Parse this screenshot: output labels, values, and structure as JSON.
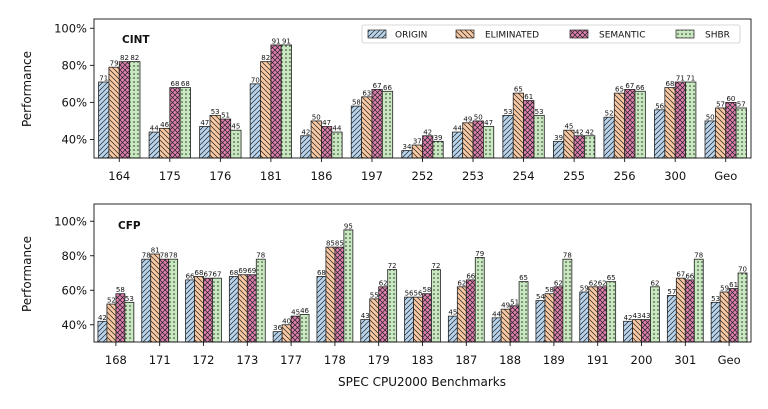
{
  "chart_data": [
    {
      "type": "bar",
      "panel_label": "CINT",
      "ylabel": "Performance",
      "xlabel": "",
      "ylim": [
        30,
        105
      ],
      "yticks": [
        40,
        60,
        80,
        100
      ],
      "ytick_labels": [
        "40%",
        "60%",
        "80%",
        "100%"
      ],
      "legend_position": "top-right",
      "categories": [
        "164",
        "175",
        "176",
        "181",
        "186",
        "197",
        "252",
        "253",
        "254",
        "255",
        "256",
        "300",
        "Geo"
      ],
      "series": [
        {
          "name": "ORIGIN",
          "color": "#b8d4ec",
          "hatch": "diag",
          "values": [
            71,
            44,
            47,
            70,
            42,
            58,
            34,
            44,
            53,
            39,
            52,
            56,
            50
          ]
        },
        {
          "name": "ELIMINATED",
          "color": "#f9c9a4",
          "hatch": "backdiag",
          "values": [
            79,
            46,
            53,
            82,
            50,
            63,
            37,
            49,
            65,
            45,
            65,
            68,
            57
          ]
        },
        {
          "name": "SEMANTIC",
          "color": "#e080b0",
          "hatch": "cross",
          "values": [
            82,
            68,
            51,
            91,
            47,
            67,
            42,
            50,
            61,
            42,
            67,
            71,
            60
          ]
        },
        {
          "name": "SHBR",
          "color": "#c8e8c0",
          "hatch": "dots",
          "values": [
            82,
            68,
            45,
            91,
            44,
            66,
            39,
            47,
            53,
            42,
            66,
            71,
            57
          ]
        }
      ]
    },
    {
      "type": "bar",
      "panel_label": "CFP",
      "ylabel": "Performance",
      "xlabel": "SPEC CPU2000 Benchmarks",
      "ylim": [
        30,
        110
      ],
      "yticks": [
        40,
        60,
        80,
        100
      ],
      "ytick_labels": [
        "40%",
        "60%",
        "80%",
        "100%"
      ],
      "categories": [
        "168",
        "171",
        "172",
        "173",
        "177",
        "178",
        "179",
        "183",
        "187",
        "188",
        "189",
        "191",
        "200",
        "301",
        "Geo"
      ],
      "series": [
        {
          "name": "ORIGIN",
          "color": "#b8d4ec",
          "hatch": "diag",
          "values": [
            42,
            78,
            66,
            68,
            36,
            68,
            43,
            56,
            45,
            44,
            54,
            59,
            42,
            57,
            53
          ]
        },
        {
          "name": "ELIMINATED",
          "color": "#f9c9a4",
          "hatch": "backdiag",
          "values": [
            52,
            81,
            68,
            69,
            40,
            85,
            55,
            56,
            62,
            49,
            58,
            62,
            43,
            67,
            59
          ]
        },
        {
          "name": "SEMANTIC",
          "color": "#e080b0",
          "hatch": "cross",
          "values": [
            58,
            78,
            67,
            69,
            45,
            85,
            62,
            58,
            66,
            51,
            62,
            62,
            43,
            66,
            61
          ]
        },
        {
          "name": "SHBR",
          "color": "#c8e8c0",
          "hatch": "dots",
          "values": [
            53,
            78,
            67,
            78,
            46,
            95,
            72,
            72,
            79,
            65,
            78,
            65,
            62,
            78,
            70
          ]
        }
      ]
    }
  ]
}
